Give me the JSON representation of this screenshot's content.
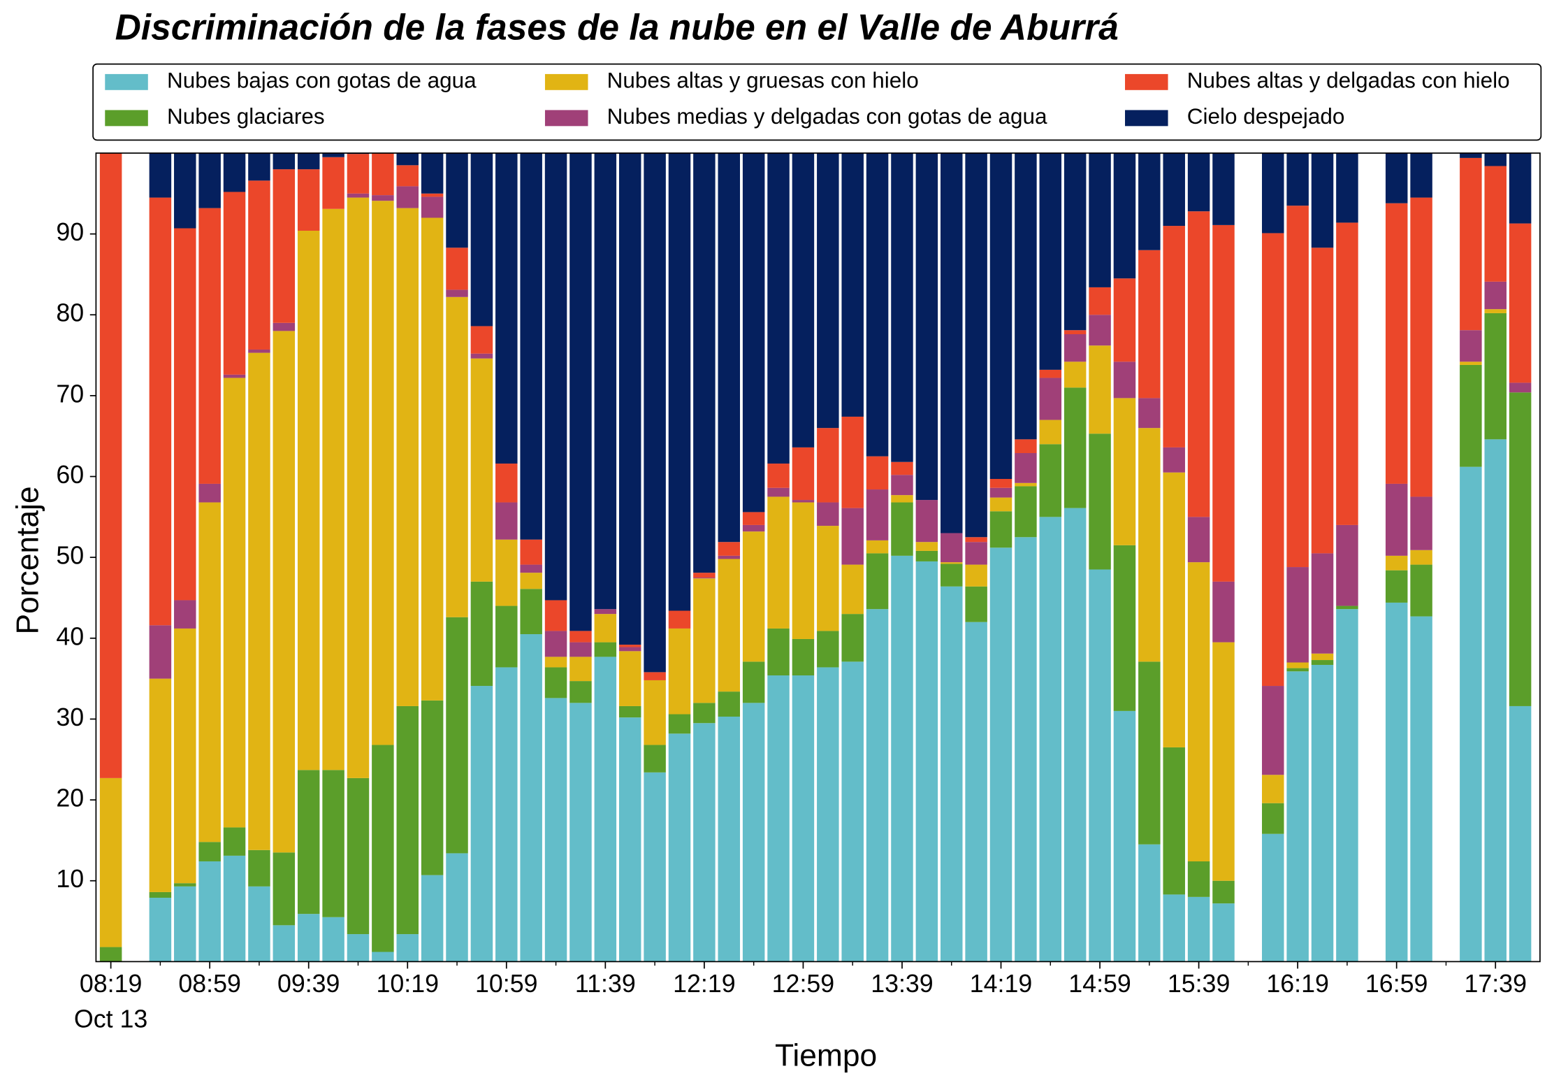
{
  "chart_data": {
    "type": "stacked_bar",
    "title": "Discriminación de la fases de la nube en el Valle de Aburrá",
    "xlabel": "Tiempo",
    "ylabel": "Porcentaje",
    "x_date": "Oct 13",
    "x": [
      "08:19",
      "08:39",
      "08:49",
      "08:59",
      "09:09",
      "09:19",
      "09:29",
      "09:39",
      "09:49",
      "09:59",
      "10:09",
      "10:19",
      "10:29",
      "10:39",
      "10:49",
      "10:59",
      "11:09",
      "11:19",
      "11:29",
      "11:39",
      "11:49",
      "11:59",
      "12:09",
      "12:19",
      "12:29",
      "12:39",
      "12:49",
      "12:59",
      "13:09",
      "13:19",
      "13:29",
      "13:39",
      "13:49",
      "13:59",
      "14:09",
      "14:19",
      "14:29",
      "14:39",
      "14:49",
      "14:59",
      "15:09",
      "15:19",
      "15:29",
      "15:39",
      "15:49",
      "16:09",
      "16:19",
      "16:29",
      "16:39",
      "16:59",
      "17:09",
      "17:29",
      "17:39",
      "17:49"
    ],
    "xlim": [
      "08:13",
      "17:57"
    ],
    "xticks": [
      "08:19",
      "08:59",
      "09:39",
      "10:19",
      "10:59",
      "11:39",
      "12:19",
      "12:59",
      "13:39",
      "14:19",
      "14:59",
      "15:39",
      "16:19",
      "16:59",
      "17:39"
    ],
    "xminorticks": [
      "08:39",
      "09:19",
      "09:59",
      "10:39",
      "11:19",
      "11:59",
      "12:39",
      "13:19",
      "13:59",
      "14:39",
      "15:19",
      "15:59",
      "16:39",
      "17:19"
    ],
    "ylim": [
      0,
      100
    ],
    "yticks": [
      10,
      20,
      30,
      40,
      50,
      60,
      70,
      80,
      90
    ],
    "grid": false,
    "legend": "top",
    "series": [
      {
        "name": "Nubes bajas con gotas de agua",
        "color": "#63bdc9",
        "values": [
          0,
          7.9,
          9.3,
          12.4,
          13.1,
          9.3,
          4.5,
          5.9,
          5.5,
          3.4,
          1.2,
          3.4,
          10.7,
          13.4,
          34.1,
          36.4,
          40.5,
          32.6,
          32.0,
          37.7,
          30.2,
          23.4,
          28.2,
          29.5,
          30.3,
          32.0,
          35.4,
          35.4,
          36.4,
          37.1,
          43.6,
          50.2,
          49.5,
          46.4,
          42.0,
          51.2,
          52.5,
          55.0,
          56.1,
          48.5,
          31.0,
          14.5,
          8.3,
          8.0,
          7.2,
          15.8,
          35.9,
          36.7,
          43.6,
          44.4,
          42.7,
          61.2,
          64.6,
          31.6
        ]
      },
      {
        "name": "Nubes glaciares",
        "color": "#5b9e2a",
        "values": [
          1.8,
          0.7,
          0.4,
          2.4,
          3.5,
          4.5,
          9.0,
          17.8,
          18.2,
          19.3,
          25.6,
          28.2,
          21.6,
          29.2,
          12.9,
          7.6,
          5.6,
          3.8,
          2.7,
          1.8,
          1.4,
          3.4,
          2.4,
          2.5,
          3.1,
          5.1,
          5.8,
          4.5,
          4.5,
          5.9,
          6.9,
          6.6,
          1.3,
          2.8,
          4.4,
          4.5,
          6.3,
          9.0,
          14.9,
          16.8,
          20.5,
          22.6,
          18.2,
          4.4,
          2.8,
          3.8,
          0.4,
          0.6,
          0.4,
          4.0,
          6.4,
          12.6,
          15.6,
          38.8
        ]
      },
      {
        "name": "Nubes altas y gruesas con hielo",
        "color": "#e1b414",
        "values": [
          20.9,
          26.4,
          31.5,
          42.0,
          55.6,
          61.5,
          64.5,
          66.7,
          69.4,
          71.8,
          67.3,
          61.6,
          59.7,
          39.6,
          27.6,
          8.2,
          2.0,
          1.3,
          3.0,
          3.5,
          6.8,
          8.0,
          10.6,
          15.4,
          16.4,
          16.1,
          16.3,
          16.9,
          13.0,
          6.1,
          1.6,
          0.9,
          1.1,
          0.2,
          2.7,
          1.7,
          0.4,
          3.0,
          3.2,
          10.9,
          18.2,
          28.9,
          34.0,
          37.0,
          29.5,
          3.5,
          0.7,
          0.8,
          0,
          1.8,
          1.8,
          0.4,
          0.5,
          0
        ]
      },
      {
        "name": "Nubes medias y delgadas con gotas de agua",
        "color": "#a04078",
        "values": [
          0,
          6.6,
          3.5,
          2.3,
          0.4,
          0.4,
          1.0,
          0,
          0,
          0.5,
          0.7,
          2.7,
          2.6,
          0.9,
          0.6,
          4.6,
          1.0,
          3.2,
          1.8,
          0.6,
          0.5,
          0,
          0,
          0.1,
          0.4,
          0.8,
          1.1,
          0.3,
          2.9,
          7.0,
          6.3,
          2.5,
          5.2,
          3.6,
          2.8,
          1.2,
          3.7,
          5.2,
          3.4,
          3.8,
          4.5,
          3.7,
          3.1,
          5.6,
          7.5,
          11.0,
          11.8,
          12.4,
          10.0,
          8.9,
          6.6,
          3.9,
          3.4,
          1.2
        ]
      },
      {
        "name": "Nubes altas y delgadas con hielo",
        "color": "#eb472a",
        "values": [
          77.3,
          52.9,
          46.0,
          34.1,
          22.6,
          20.9,
          19.0,
          7.6,
          6.4,
          4.9,
          5.2,
          2.6,
          0.4,
          5.2,
          3.4,
          4.8,
          3.1,
          3.8,
          1.4,
          0,
          0.3,
          1.0,
          2.2,
          0.6,
          1.7,
          1.6,
          3.0,
          6.5,
          9.2,
          11.3,
          4.1,
          1.6,
          0,
          0,
          0.6,
          1.1,
          1.7,
          1.0,
          0.5,
          3.4,
          10.3,
          18.3,
          27.4,
          37.8,
          44.1,
          56.0,
          44.7,
          37.8,
          37.4,
          34.7,
          37.0,
          21.3,
          14.3,
          19.7
        ]
      },
      {
        "name": "Cielo despejado",
        "color": "#05205e",
        "values": [
          0,
          5.5,
          9.3,
          6.8,
          4.8,
          3.4,
          2.0,
          2.0,
          0.5,
          0.1,
          0,
          1.5,
          5.0,
          11.7,
          21.4,
          38.4,
          47.8,
          55.3,
          59.1,
          56.4,
          60.8,
          64.2,
          56.6,
          51.9,
          48.1,
          44.4,
          38.4,
          36.4,
          34.0,
          32.6,
          37.5,
          38.2,
          42.9,
          47.0,
          47.5,
          40.3,
          35.4,
          26.8,
          21.9,
          16.6,
          15.5,
          12.0,
          9.0,
          7.2,
          8.9,
          9.9,
          6.5,
          11.7,
          8.6,
          6.2,
          5.5,
          0.6,
          1.6,
          8.7
        ]
      }
    ]
  }
}
